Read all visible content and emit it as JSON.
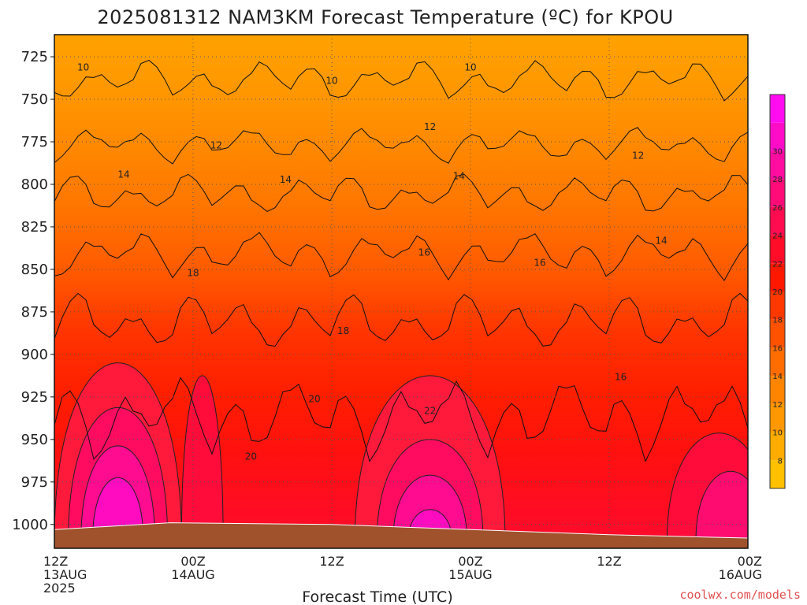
{
  "chart_data": {
    "type": "heatmap",
    "title": "2025081312 NAM3KM Forecast Temperature (ºC) for KPOU",
    "xlabel": "Forecast Time (UTC)",
    "ylabel": "",
    "y_ticks": [
      725,
      750,
      775,
      800,
      825,
      850,
      875,
      900,
      925,
      950,
      975,
      1000
    ],
    "y_range": [
      712,
      1014
    ],
    "x_range_hours": [
      0,
      60
    ],
    "x_ticks": [
      {
        "hour": 0,
        "lines": [
          "12Z",
          "13AUG",
          "2025"
        ]
      },
      {
        "hour": 12,
        "lines": [
          "00Z",
          "14AUG"
        ]
      },
      {
        "hour": 24,
        "lines": [
          "12Z"
        ]
      },
      {
        "hour": 36,
        "lines": [
          "00Z",
          "15AUG"
        ]
      },
      {
        "hour": 48,
        "lines": [
          "12Z"
        ]
      },
      {
        "hour": 60,
        "lines": [
          "00Z",
          "16AUG"
        ]
      }
    ],
    "colorbar": {
      "labels": [
        8,
        10,
        12,
        14,
        16,
        18,
        20,
        22,
        24,
        26,
        28,
        30
      ],
      "levels": [
        6,
        8,
        10,
        12,
        14,
        16,
        18,
        20,
        22,
        24,
        26,
        28,
        30,
        32
      ],
      "colors": [
        "#ffc000",
        "#ffac00",
        "#ff9800",
        "#ff8400",
        "#ff6c00",
        "#ff5200",
        "#ff3800",
        "#ff1800",
        "#ff0c28",
        "#ff0c50",
        "#ff0c78",
        "#ff0ca0",
        "#ff0cc8",
        "#ff0cf0"
      ]
    },
    "grid": true,
    "contour_labels": [
      {
        "text": "10",
        "hour": 2.5,
        "p": 733
      },
      {
        "text": "10",
        "hour": 24,
        "p": 741
      },
      {
        "text": "10",
        "hour": 36,
        "p": 733
      },
      {
        "text": "12",
        "hour": 14,
        "p": 779
      },
      {
        "text": "12",
        "hour": 32.5,
        "p": 768
      },
      {
        "text": "12",
        "hour": 50.5,
        "p": 785
      },
      {
        "text": "14",
        "hour": 6,
        "p": 796
      },
      {
        "text": "14",
        "hour": 20,
        "p": 799
      },
      {
        "text": "14",
        "hour": 35,
        "p": 797
      },
      {
        "text": "14",
        "hour": 52.5,
        "p": 835
      },
      {
        "text": "16",
        "hour": 32,
        "p": 842
      },
      {
        "text": "16",
        "hour": 42,
        "p": 848
      },
      {
        "text": "16",
        "hour": 49,
        "p": 915
      },
      {
        "text": "18",
        "hour": 12,
        "p": 854
      },
      {
        "text": "18",
        "hour": 25,
        "p": 888
      },
      {
        "text": "20",
        "hour": 22.5,
        "p": 928
      },
      {
        "text": "20",
        "hour": 17,
        "p": 962
      },
      {
        "text": "22",
        "hour": 32.5,
        "p": 935
      }
    ]
  },
  "footer": {
    "credit": "coolwx.com/models"
  },
  "colors": {
    "ground": "#a0522d",
    "grid": "#555555",
    "credit": "#e05050"
  }
}
